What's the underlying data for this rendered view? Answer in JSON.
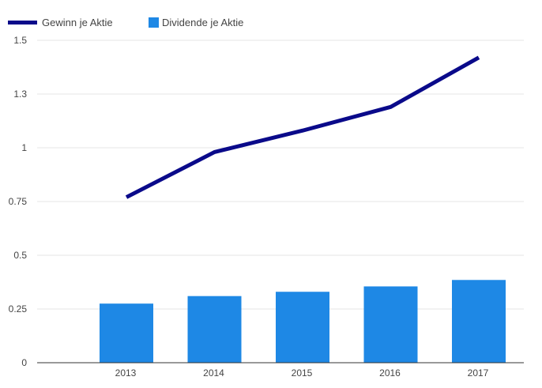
{
  "chart_data": {
    "type": "bar",
    "categories": [
      "2013",
      "2014",
      "2015",
      "2016",
      "2017"
    ],
    "series": [
      {
        "name": "Gewinn je Aktie",
        "type": "line",
        "color": "#0a0a8a",
        "values": [
          0.77,
          0.98,
          1.08,
          1.19,
          1.42
        ]
      },
      {
        "name": "Dividende je Aktie",
        "type": "bar",
        "color": "#1e88e5",
        "values": [
          0.275,
          0.31,
          0.33,
          0.355,
          0.385
        ]
      }
    ],
    "yticks": [
      "0",
      "0.25",
      "0.5",
      "0.75",
      "1",
      "1.3",
      "1.5"
    ],
    "ylim": [
      0,
      1.5
    ],
    "grid": true,
    "legend_position": "top-left",
    "gridline_color": "#e6e6e6",
    "axis_color": "#333333"
  }
}
